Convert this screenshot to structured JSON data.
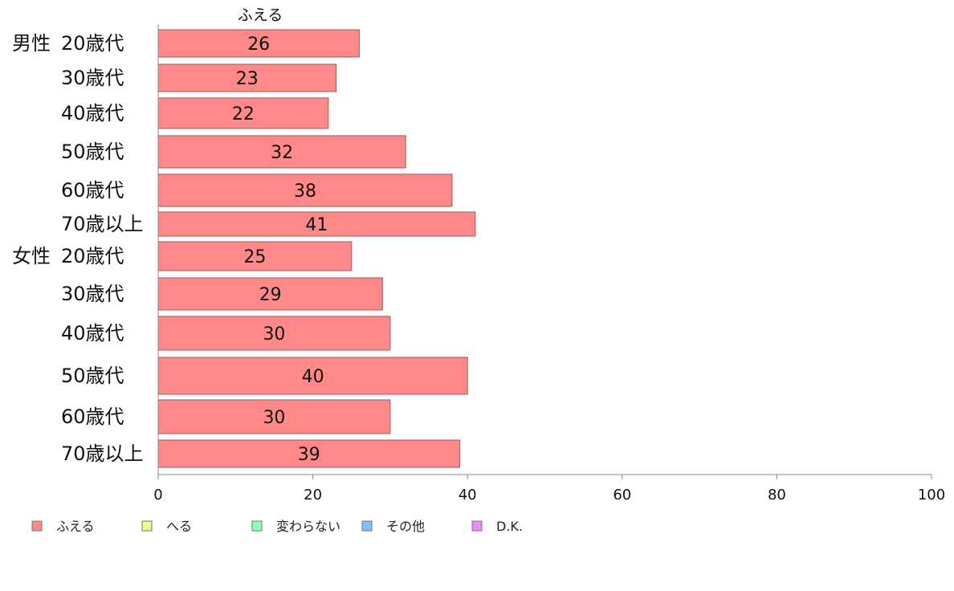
{
  "chart_data": {
    "type": "bar",
    "orientation": "horizontal",
    "series_title": "ふえる",
    "groups": [
      {
        "name": "男性",
        "categories": [
          "20歳代",
          "30歳代",
          "40歳代",
          "50歳代",
          "60歳代",
          "70歳以上"
        ]
      },
      {
        "name": "女性",
        "categories": [
          "20歳代",
          "30歳代",
          "40歳代",
          "50歳代",
          "60歳代",
          "70歳以上"
        ]
      }
    ],
    "series": [
      {
        "name": "ふえる",
        "values": [
          26,
          23,
          22,
          32,
          38,
          41,
          25,
          29,
          30,
          40,
          30,
          39
        ]
      }
    ],
    "xlim": [
      0,
      100
    ],
    "xticks": [
      "0",
      "20",
      "40",
      "60",
      "80",
      "100"
    ],
    "grid": false,
    "legend_position": "bottom-left",
    "legend": [
      {
        "label": "ふえる",
        "color": "#ff8888"
      },
      {
        "label": "へる",
        "color": "#e8ff88"
      },
      {
        "label": "変わらない",
        "color": "#88ffbb"
      },
      {
        "label": "その他",
        "color": "#88bbff"
      },
      {
        "label": "D.K.",
        "color": "#ee88ff"
      }
    ],
    "bar_color": "#ff8888",
    "bar_border_color": "#a05a5a"
  }
}
